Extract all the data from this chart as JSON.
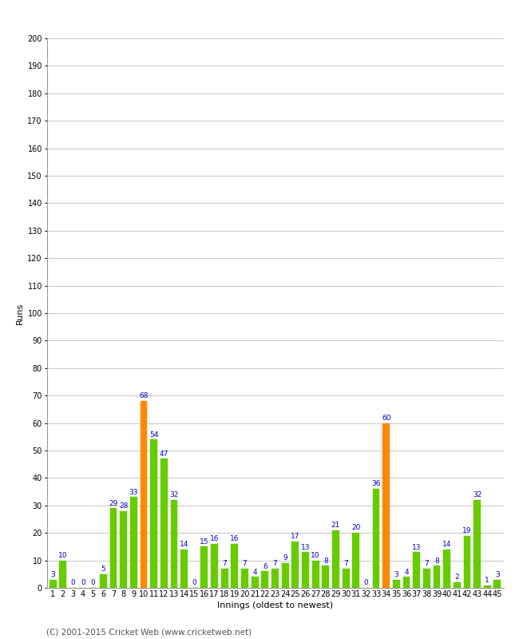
{
  "xlabel": "Innings (oldest to newest)",
  "ylabel": "Runs",
  "ylim": [
    0,
    200
  ],
  "yticks": [
    0,
    10,
    20,
    30,
    40,
    50,
    60,
    70,
    80,
    90,
    100,
    110,
    120,
    130,
    140,
    150,
    160,
    170,
    180,
    190,
    200
  ],
  "innings": [
    1,
    2,
    3,
    4,
    5,
    6,
    7,
    8,
    9,
    10,
    11,
    12,
    13,
    14,
    15,
    16,
    17,
    18,
    19,
    20,
    21,
    22,
    23,
    24,
    25,
    26,
    27,
    28,
    29,
    30,
    31,
    32,
    33,
    34,
    35,
    36,
    37,
    38,
    39,
    40,
    41,
    42,
    43,
    44,
    45
  ],
  "values": [
    3,
    10,
    0,
    0,
    0,
    5,
    29,
    28,
    33,
    68,
    54,
    47,
    32,
    14,
    0,
    15,
    16,
    7,
    16,
    7,
    4,
    6,
    7,
    9,
    17,
    13,
    10,
    8,
    21,
    7,
    20,
    0,
    36,
    60,
    3,
    4,
    13,
    7,
    8,
    14,
    2,
    19,
    32,
    1,
    3
  ],
  "colors": [
    "#66cc00",
    "#66cc00",
    "#66cc00",
    "#66cc00",
    "#66cc00",
    "#66cc00",
    "#66cc00",
    "#66cc00",
    "#66cc00",
    "#ff8800",
    "#66cc00",
    "#66cc00",
    "#66cc00",
    "#66cc00",
    "#66cc00",
    "#66cc00",
    "#66cc00",
    "#66cc00",
    "#66cc00",
    "#66cc00",
    "#66cc00",
    "#66cc00",
    "#66cc00",
    "#66cc00",
    "#66cc00",
    "#66cc00",
    "#66cc00",
    "#66cc00",
    "#66cc00",
    "#66cc00",
    "#66cc00",
    "#66cc00",
    "#66cc00",
    "#ff8800",
    "#66cc00",
    "#66cc00",
    "#66cc00",
    "#66cc00",
    "#66cc00",
    "#66cc00",
    "#66cc00",
    "#66cc00",
    "#66cc00",
    "#66cc00",
    "#66cc00"
  ],
  "label_color": "#0000cc",
  "bg_color": "#ffffff",
  "grid_color": "#cccccc",
  "footer": "(C) 2001-2015 Cricket Web (www.cricketweb.net)",
  "title_fontsize": 10,
  "axis_fontsize": 8,
  "label_fontsize": 6.5,
  "tick_fontsize": 7,
  "footer_fontsize": 7.5
}
